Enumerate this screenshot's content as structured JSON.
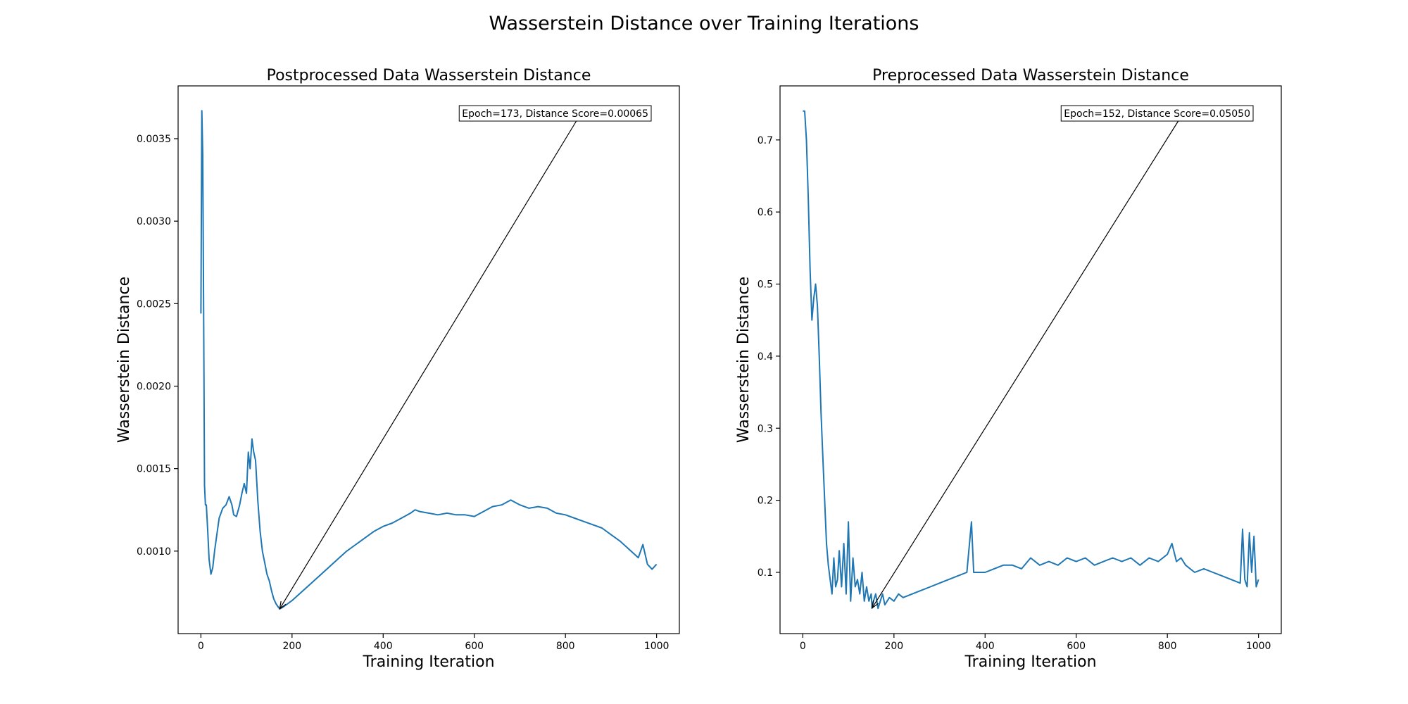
{
  "figure": {
    "title": "Wasserstein Distance over Training Iterations"
  },
  "chart_data": [
    {
      "type": "line",
      "title": "Postprocessed Data Wasserstein Distance",
      "xlabel": "Training Iteration",
      "ylabel": "Wasserstein Distance",
      "xlim": [
        -50,
        1050
      ],
      "ylim": [
        0.0005,
        0.00382
      ],
      "xticks": [
        0,
        200,
        400,
        600,
        800,
        1000
      ],
      "yticks": [
        0.001,
        0.0015,
        0.002,
        0.0025,
        0.003,
        0.0035
      ],
      "ytick_labels": [
        "0.0010",
        "0.0015",
        "0.0020",
        "0.0025",
        "0.0030",
        "0.0035"
      ],
      "grid": false,
      "color": "#1f77b4",
      "annotation": {
        "text": "Epoch=173, Distance Score=0.00065",
        "x": 173,
        "y": 0.00065
      },
      "series": [
        {
          "x": [
            0,
            2,
            4,
            6,
            8,
            10,
            12,
            15,
            18,
            22,
            26,
            30,
            35,
            40,
            48,
            55,
            62,
            68,
            72,
            78,
            85,
            90,
            95,
            100,
            104,
            108,
            112,
            116,
            120,
            125,
            130,
            135,
            140,
            145,
            150,
            155,
            160,
            165,
            170,
            173,
            180,
            190,
            200,
            220,
            240,
            260,
            280,
            300,
            320,
            340,
            360,
            380,
            400,
            420,
            440,
            460,
            470,
            480,
            500,
            520,
            540,
            560,
            580,
            600,
            620,
            640,
            660,
            680,
            700,
            720,
            740,
            760,
            780,
            800,
            820,
            840,
            860,
            880,
            900,
            920,
            940,
            960,
            970,
            980,
            990,
            1000
          ],
          "y": [
            0.00244,
            0.00367,
            0.0034,
            0.0025,
            0.0014,
            0.00128,
            0.00128,
            0.00112,
            0.00095,
            0.00086,
            0.0009,
            0.001,
            0.0011,
            0.0012,
            0.00126,
            0.00128,
            0.00133,
            0.00128,
            0.00122,
            0.00121,
            0.00128,
            0.00135,
            0.00141,
            0.00135,
            0.0016,
            0.0015,
            0.00168,
            0.0016,
            0.00155,
            0.0013,
            0.00112,
            0.001,
            0.00093,
            0.00086,
            0.00082,
            0.00076,
            0.00071,
            0.00068,
            0.00066,
            0.00065,
            0.00066,
            0.00068,
            0.0007,
            0.00075,
            0.0008,
            0.00085,
            0.0009,
            0.00095,
            0.001,
            0.00104,
            0.00108,
            0.00112,
            0.00115,
            0.00117,
            0.0012,
            0.00123,
            0.00125,
            0.00124,
            0.00123,
            0.00122,
            0.00123,
            0.00122,
            0.00122,
            0.00121,
            0.00124,
            0.00127,
            0.00128,
            0.00131,
            0.00128,
            0.00126,
            0.00127,
            0.00126,
            0.00123,
            0.00122,
            0.0012,
            0.00118,
            0.00116,
            0.00114,
            0.0011,
            0.00106,
            0.00101,
            0.00096,
            0.00104,
            0.00092,
            0.00089,
            0.00092
          ]
        }
      ]
    },
    {
      "type": "line",
      "title": "Preprocessed Data Wasserstein Distance",
      "xlabel": "Training Iteration",
      "ylabel": "Wasserstein Distance",
      "xlim": [
        -50,
        1050
      ],
      "ylim": [
        0.015,
        0.775
      ],
      "xticks": [
        0,
        200,
        400,
        600,
        800,
        1000
      ],
      "yticks": [
        0.1,
        0.2,
        0.3,
        0.4,
        0.5,
        0.6,
        0.7
      ],
      "ytick_labels": [
        "0.1",
        "0.2",
        "0.3",
        "0.4",
        "0.5",
        "0.6",
        "0.7"
      ],
      "grid": false,
      "color": "#1f77b4",
      "annotation": {
        "text": "Epoch=152, Distance Score=0.05050",
        "x": 152,
        "y": 0.0505
      },
      "series": [
        {
          "x": [
            0,
            4,
            8,
            12,
            16,
            20,
            24,
            28,
            32,
            36,
            40,
            44,
            48,
            52,
            56,
            60,
            64,
            68,
            72,
            76,
            80,
            85,
            90,
            95,
            100,
            105,
            110,
            115,
            120,
            125,
            130,
            135,
            140,
            145,
            150,
            152,
            155,
            160,
            165,
            170,
            175,
            180,
            190,
            200,
            210,
            220,
            240,
            260,
            280,
            300,
            320,
            340,
            360,
            370,
            375,
            380,
            400,
            420,
            440,
            460,
            480,
            500,
            520,
            540,
            560,
            580,
            600,
            620,
            640,
            660,
            680,
            700,
            720,
            740,
            760,
            780,
            800,
            810,
            820,
            830,
            840,
            860,
            880,
            900,
            920,
            940,
            960,
            965,
            970,
            975,
            980,
            985,
            990,
            995,
            1000
          ],
          "y": [
            0.74,
            0.74,
            0.7,
            0.62,
            0.52,
            0.45,
            0.48,
            0.5,
            0.47,
            0.4,
            0.32,
            0.26,
            0.2,
            0.14,
            0.11,
            0.09,
            0.07,
            0.12,
            0.08,
            0.09,
            0.13,
            0.08,
            0.14,
            0.07,
            0.17,
            0.06,
            0.12,
            0.08,
            0.09,
            0.07,
            0.1,
            0.06,
            0.08,
            0.06,
            0.07,
            0.0505,
            0.06,
            0.07,
            0.05,
            0.06,
            0.07,
            0.055,
            0.065,
            0.06,
            0.07,
            0.065,
            0.07,
            0.075,
            0.08,
            0.085,
            0.09,
            0.095,
            0.1,
            0.17,
            0.1,
            0.1,
            0.1,
            0.105,
            0.11,
            0.11,
            0.105,
            0.12,
            0.11,
            0.115,
            0.11,
            0.12,
            0.115,
            0.12,
            0.11,
            0.115,
            0.12,
            0.115,
            0.12,
            0.11,
            0.12,
            0.115,
            0.125,
            0.14,
            0.115,
            0.12,
            0.11,
            0.1,
            0.105,
            0.1,
            0.095,
            0.09,
            0.085,
            0.16,
            0.09,
            0.08,
            0.155,
            0.1,
            0.15,
            0.08,
            0.09
          ]
        }
      ]
    }
  ]
}
